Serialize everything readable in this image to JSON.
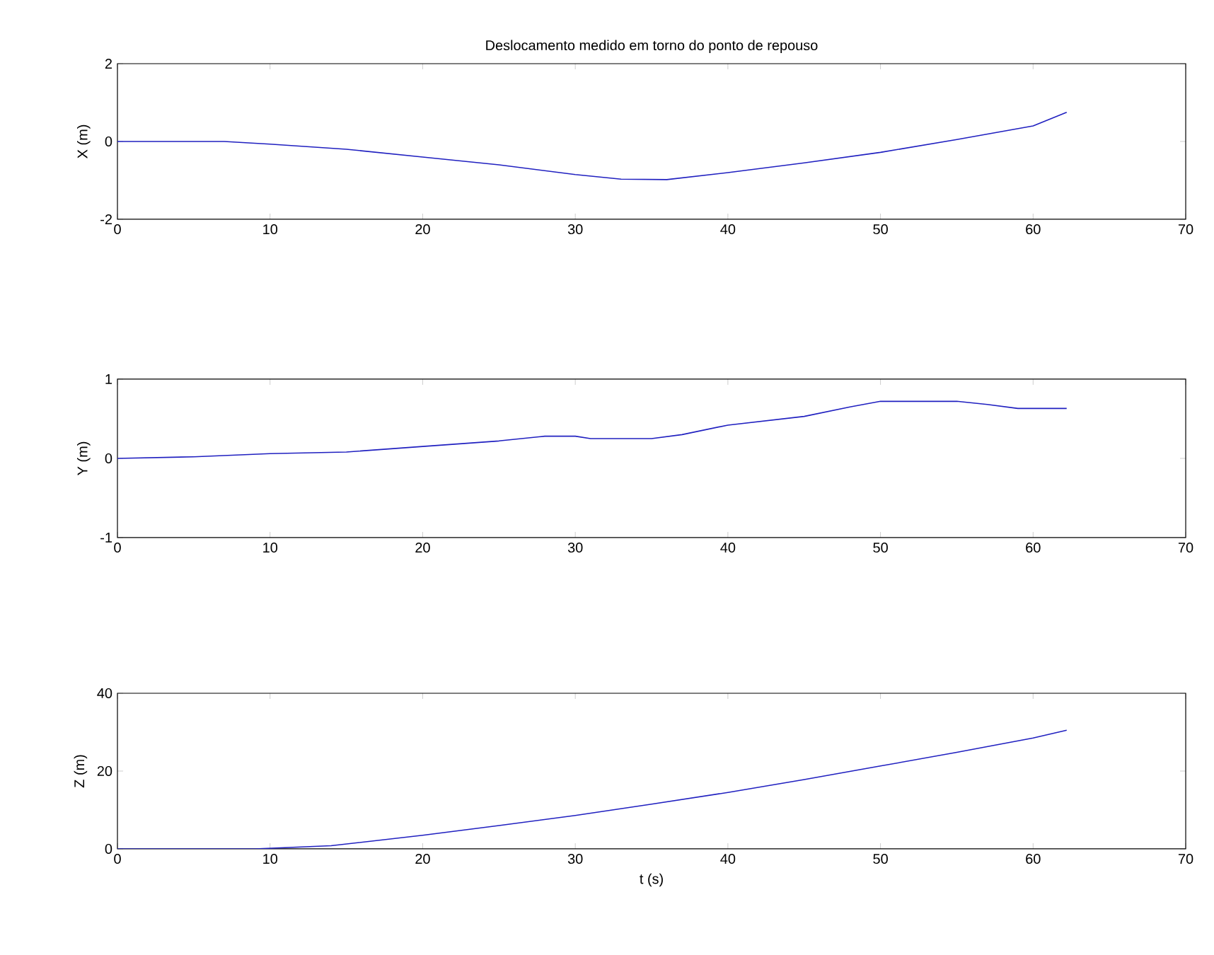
{
  "chart_data": [
    {
      "type": "line",
      "title": "Deslocamento medido em torno do ponto de repouso",
      "ylabel": "X (m)",
      "xlim": [
        0,
        70
      ],
      "xticks": [
        0,
        10,
        20,
        30,
        40,
        50,
        60,
        70
      ],
      "ylim": [
        -2,
        2
      ],
      "yticks": [
        -2,
        0,
        2
      ],
      "series": [
        {
          "color": "#2020c0",
          "x": [
            0,
            7,
            10,
            15,
            20,
            25,
            30,
            33,
            36,
            40,
            45,
            50,
            55,
            60,
            62.2
          ],
          "values": [
            0,
            0,
            -0.07,
            -0.2,
            -0.4,
            -0.6,
            -0.85,
            -0.97,
            -0.98,
            -0.8,
            -0.55,
            -0.28,
            0.05,
            0.4,
            0.75
          ]
        }
      ]
    },
    {
      "type": "line",
      "ylabel": "Y (m)",
      "xlim": [
        0,
        70
      ],
      "xticks": [
        0,
        10,
        20,
        30,
        40,
        50,
        60,
        70
      ],
      "ylim": [
        -1,
        1
      ],
      "yticks": [
        -1,
        0,
        1
      ],
      "series": [
        {
          "color": "#2020c0",
          "x": [
            0,
            5,
            10,
            15,
            20,
            25,
            28,
            30,
            31,
            35,
            37,
            40,
            45,
            48,
            50,
            55,
            57,
            59,
            62.2
          ],
          "values": [
            0,
            0.02,
            0.06,
            0.08,
            0.15,
            0.22,
            0.28,
            0.28,
            0.25,
            0.25,
            0.3,
            0.42,
            0.53,
            0.65,
            0.72,
            0.72,
            0.68,
            0.63,
            0.63
          ]
        }
      ]
    },
    {
      "type": "line",
      "xlabel": "t (s)",
      "ylabel": "Z (m)",
      "xlim": [
        0,
        70
      ],
      "xticks": [
        0,
        10,
        20,
        30,
        40,
        50,
        60,
        70
      ],
      "ylim": [
        0,
        40
      ],
      "yticks": [
        0,
        20,
        40
      ],
      "series": [
        {
          "color": "#2020c0",
          "x": [
            0,
            9,
            14,
            20,
            25,
            30,
            35,
            40,
            45,
            50,
            55,
            60,
            62.2
          ],
          "values": [
            0,
            0,
            0.8,
            3.5,
            6,
            8.6,
            11.5,
            14.5,
            17.8,
            21.3,
            24.8,
            28.5,
            30.5
          ]
        }
      ]
    }
  ]
}
